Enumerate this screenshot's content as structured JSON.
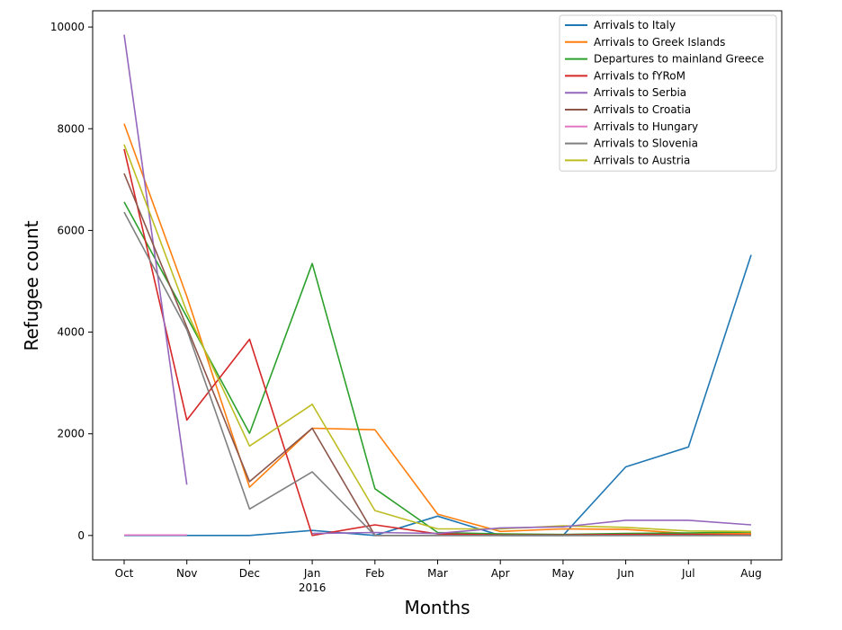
{
  "chart_data": {
    "type": "line",
    "title": "",
    "xlabel": "Months",
    "ylabel": "Refugee count",
    "categories": [
      "Oct",
      "Nov",
      "Dec",
      "Jan",
      "Feb",
      "Mar",
      "Apr",
      "May",
      "Jun",
      "Jul",
      "Aug"
    ],
    "year_label": "2016",
    "ylim": [
      -480,
      10320
    ],
    "yticks": [
      0,
      2000,
      4000,
      6000,
      8000,
      10000
    ],
    "grid": false,
    "legend_position": "top-right",
    "series": [
      {
        "name": "Arrivals to Italy",
        "color": "#1f77b4",
        "values": [
          0,
          0,
          0,
          100,
          0,
          380,
          0,
          0,
          1350,
          1740,
          5520
        ]
      },
      {
        "name": "Arrivals to Greek Islands",
        "color": "#ff7f0e",
        "values": [
          8100,
          4700,
          950,
          2110,
          2080,
          420,
          80,
          130,
          120,
          40,
          40
        ]
      },
      {
        "name": "Departures to mainland Greece",
        "color": "#2ca02c",
        "values": [
          6560,
          4300,
          2010,
          5350,
          920,
          60,
          30,
          20,
          40,
          50,
          70
        ]
      },
      {
        "name": "Arrivals to fYRoM",
        "color": "#d62728",
        "values": [
          7600,
          2270,
          3860,
          0,
          210,
          30,
          10,
          10,
          20,
          20,
          10
        ]
      },
      {
        "name": "Arrivals to Serbia",
        "color": "#9467bd",
        "values": [
          9850,
          1000,
          null,
          null,
          null,
          null,
          null,
          null,
          null,
          null,
          null
        ]
      },
      {
        "name": "Arrivals to Croatia",
        "color": "#8c564b",
        "values": [
          7120,
          4100,
          1060,
          2110,
          0,
          0,
          0,
          0,
          0,
          0,
          0
        ]
      },
      {
        "name": "Arrivals to Hungary",
        "color": "#e377c2",
        "values": [
          10,
          10,
          null,
          null,
          null,
          null,
          null,
          null,
          null,
          null,
          null
        ]
      },
      {
        "name": "Arrivals to Slovenia",
        "color": "#7f7f7f",
        "values": [
          6360,
          4050,
          520,
          1250,
          0,
          0,
          0,
          0,
          0,
          0,
          0
        ]
      },
      {
        "name": "Arrivals to Austria",
        "color": "#bcbd22",
        "values": [
          7690,
          4400,
          1760,
          2580,
          490,
          130,
          130,
          190,
          160,
          90,
          80
        ]
      }
    ],
    "extra_lines": [
      {
        "series": "Arrivals to Serbia",
        "color": "#9467bd",
        "values": [
          null,
          null,
          null,
          40,
          60,
          40,
          150,
          170,
          300,
          300,
          210
        ]
      }
    ]
  }
}
